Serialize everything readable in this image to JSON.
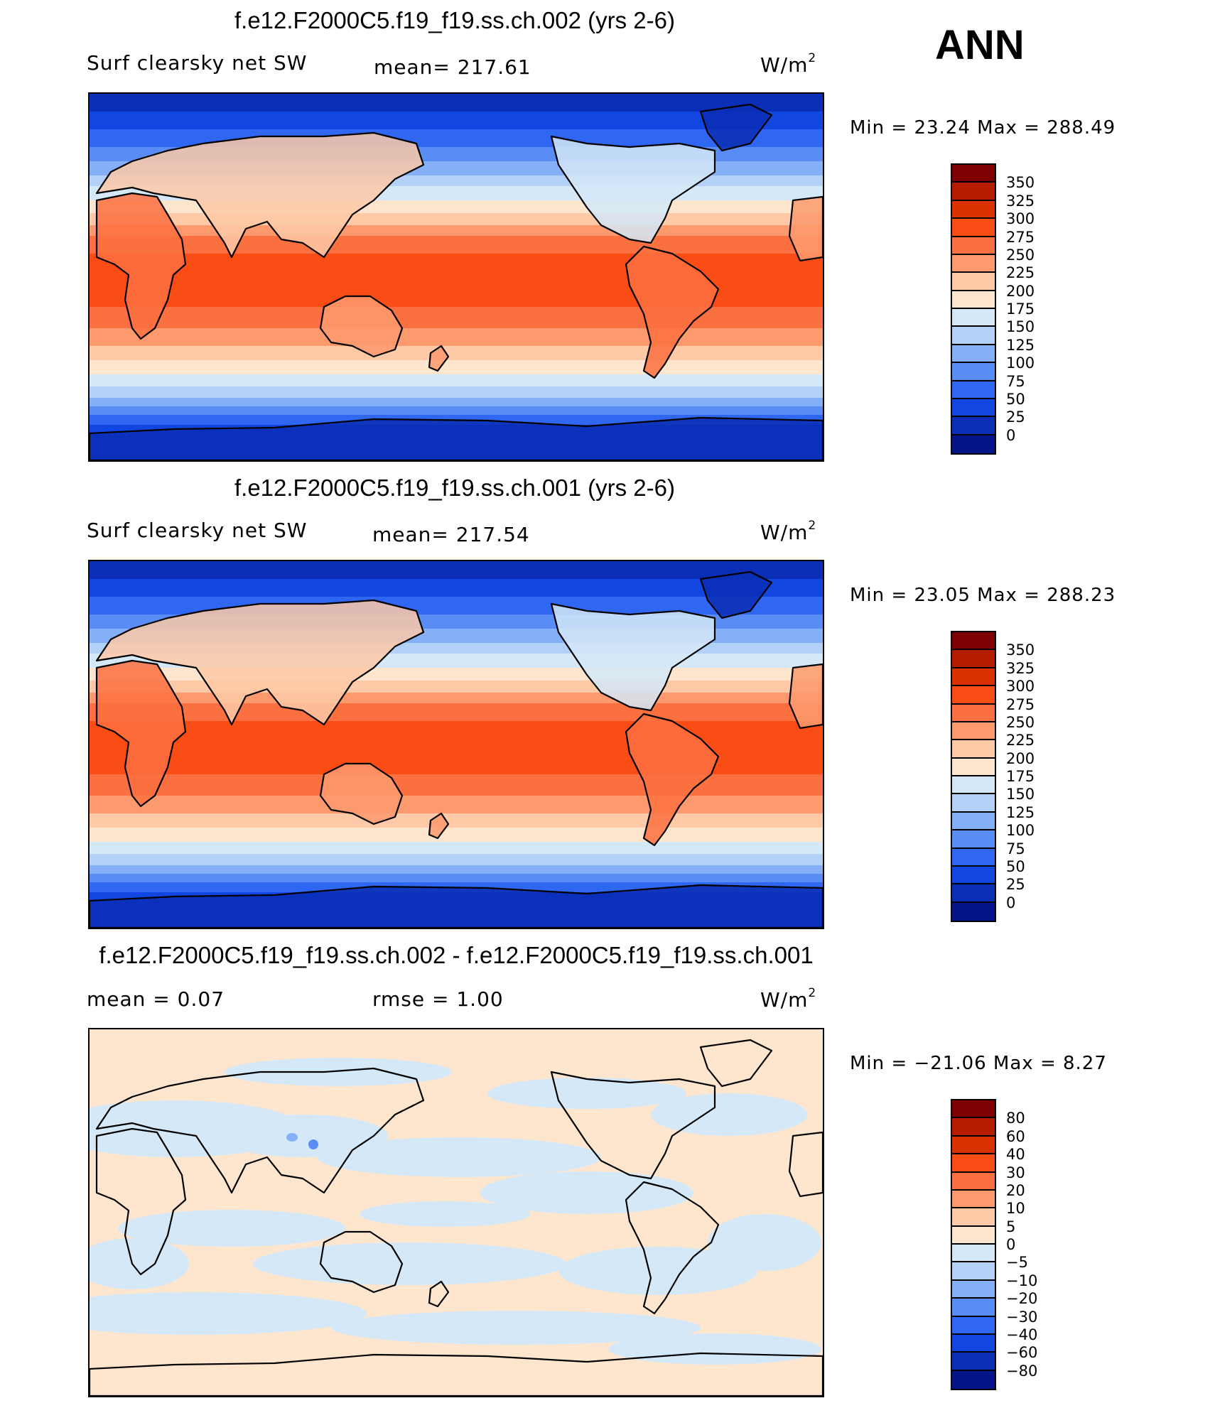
{
  "season": "ANN",
  "panels": [
    {
      "title": "f.e12.F2000C5.f19_f19.ss.ch.002 (yrs 2-6)",
      "variable": "Surf clearsky net SW",
      "stat1": "mean=  217.61",
      "stat2": "",
      "units": "W/m",
      "units_exp": "2",
      "minmax": "Min =   23.24  Max  =  288.49",
      "levels": [
        "350",
        "325",
        "300",
        "275",
        "250",
        "225",
        "200",
        "175",
        "150",
        "125",
        "100",
        "75",
        "50",
        "25",
        "0"
      ],
      "colors": [
        "#7f0000",
        "#b51c00",
        "#d93200",
        "#fa4d15",
        "#fb7040",
        "#fc9a6e",
        "#fdc9a7",
        "#fee6ce",
        "#d4e8f7",
        "#b3d1f6",
        "#85b0f8",
        "#5a8cf5",
        "#2f66f2",
        "#1246e0",
        "#0a2eb5",
        "#04158a"
      ],
      "map": {
        "pattern": "absolute",
        "land_note": ""
      }
    },
    {
      "title": "f.e12.F2000C5.f19_f19.ss.ch.001 (yrs 2-6)",
      "variable": "Surf clearsky net SW",
      "stat1": "mean=  217.54",
      "stat2": "",
      "units": "W/m",
      "units_exp": "2",
      "minmax": "Min =   23.05  Max  =  288.23",
      "levels": [
        "350",
        "325",
        "300",
        "275",
        "250",
        "225",
        "200",
        "175",
        "150",
        "125",
        "100",
        "75",
        "50",
        "25",
        "0"
      ],
      "colors": [
        "#7f0000",
        "#b51c00",
        "#d93200",
        "#fa4d15",
        "#fb7040",
        "#fc9a6e",
        "#fdc9a7",
        "#fee6ce",
        "#d4e8f7",
        "#b3d1f6",
        "#85b0f8",
        "#5a8cf5",
        "#2f66f2",
        "#1246e0",
        "#0a2eb5",
        "#04158a"
      ],
      "map": {
        "pattern": "absolute",
        "land_note": ""
      }
    },
    {
      "title": "f.e12.F2000C5.f19_f19.ss.ch.002 - f.e12.F2000C5.f19_f19.ss.ch.001",
      "variable": "",
      "stat1": "mean =     0.07",
      "stat2": "rmse =     1.00",
      "units": "W/m",
      "units_exp": "2",
      "minmax": "Min = −21.06  Max =      8.27",
      "levels": [
        "80",
        "60",
        "40",
        "30",
        "20",
        "10",
        "5",
        "0",
        "−5",
        "−10",
        "−20",
        "−30",
        "−40",
        "−60",
        "−80"
      ],
      "colors": [
        "#7f0000",
        "#b51c00",
        "#d93200",
        "#fa4d15",
        "#fb7040",
        "#fc9a6e",
        "#fdc9a7",
        "#fee6ce",
        "#d4e8f7",
        "#b3d1f6",
        "#85b0f8",
        "#5a8cf5",
        "#2f66f2",
        "#1246e0",
        "#0a2eb5",
        "#04158a"
      ],
      "map": {
        "pattern": "difference",
        "land_note": ""
      }
    }
  ]
}
